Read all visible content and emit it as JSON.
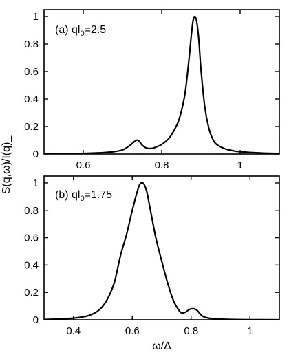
{
  "chart_data": [
    {
      "type": "line",
      "panel": "top",
      "label": {
        "prefix": "(a) ql",
        "sub": "0",
        "suffix": "=2.5"
      },
      "xlim": [
        0.5,
        1.1
      ],
      "ylim": [
        0,
        1.05
      ],
      "xticks": [
        0.6,
        0.8,
        1
      ],
      "xtick_labels": [
        "0.6",
        "0.8",
        "1"
      ],
      "yticks": [
        0,
        0.2,
        0.4,
        0.6,
        0.8,
        1
      ],
      "ytick_labels": [
        "0",
        "0.2",
        "0.4",
        "0.6",
        "0.8",
        "1"
      ],
      "x": [
        0.5,
        0.55,
        0.6,
        0.65,
        0.68,
        0.7,
        0.71,
        0.72,
        0.73,
        0.735,
        0.74,
        0.745,
        0.75,
        0.76,
        0.77,
        0.78,
        0.8,
        0.82,
        0.84,
        0.85,
        0.86,
        0.87,
        0.875,
        0.88,
        0.885,
        0.89,
        0.895,
        0.9,
        0.91,
        0.92,
        0.93,
        0.94,
        0.96,
        0.98,
        1.0,
        1.05,
        1.1
      ],
      "y": [
        0.002,
        0.003,
        0.005,
        0.01,
        0.018,
        0.03,
        0.045,
        0.065,
        0.09,
        0.1,
        0.1,
        0.085,
        0.065,
        0.045,
        0.04,
        0.045,
        0.07,
        0.12,
        0.22,
        0.31,
        0.45,
        0.7,
        0.85,
        0.97,
        1.0,
        0.95,
        0.82,
        0.62,
        0.34,
        0.19,
        0.11,
        0.07,
        0.04,
        0.025,
        0.017,
        0.008,
        0.004
      ]
    },
    {
      "type": "line",
      "panel": "bottom",
      "label": {
        "prefix": "(b) ql",
        "sub": "0",
        "suffix": "=1.75"
      },
      "xlim": [
        0.3,
        1.1
      ],
      "ylim": [
        0,
        1.05
      ],
      "xticks": [
        0.4,
        0.6,
        0.8,
        1
      ],
      "xtick_labels": [
        "0.4",
        "0.6",
        "0.8",
        "1"
      ],
      "yticks": [
        0,
        0.2,
        0.4,
        0.6,
        0.8,
        1
      ],
      "ytick_labels": [
        "0",
        "0.2",
        "0.4",
        "0.6",
        "0.8",
        "1"
      ],
      "xlabel": "ω/Δ",
      "x": [
        0.3,
        0.35,
        0.4,
        0.45,
        0.48,
        0.5,
        0.52,
        0.54,
        0.56,
        0.58,
        0.6,
        0.62,
        0.63,
        0.64,
        0.65,
        0.66,
        0.68,
        0.7,
        0.72,
        0.74,
        0.76,
        0.77,
        0.78,
        0.79,
        0.8,
        0.81,
        0.82,
        0.83,
        0.84,
        0.86,
        0.9,
        0.95,
        1.0,
        1.1
      ],
      "y": [
        0.002,
        0.006,
        0.012,
        0.03,
        0.06,
        0.1,
        0.17,
        0.28,
        0.47,
        0.62,
        0.8,
        0.96,
        1.0,
        0.99,
        0.93,
        0.82,
        0.6,
        0.43,
        0.27,
        0.14,
        0.065,
        0.05,
        0.055,
        0.07,
        0.08,
        0.08,
        0.07,
        0.045,
        0.025,
        0.012,
        0.005,
        0.002,
        0.001,
        0.0
      ]
    }
  ],
  "shared_ylabel": "S(q,ω)/I(q)_"
}
